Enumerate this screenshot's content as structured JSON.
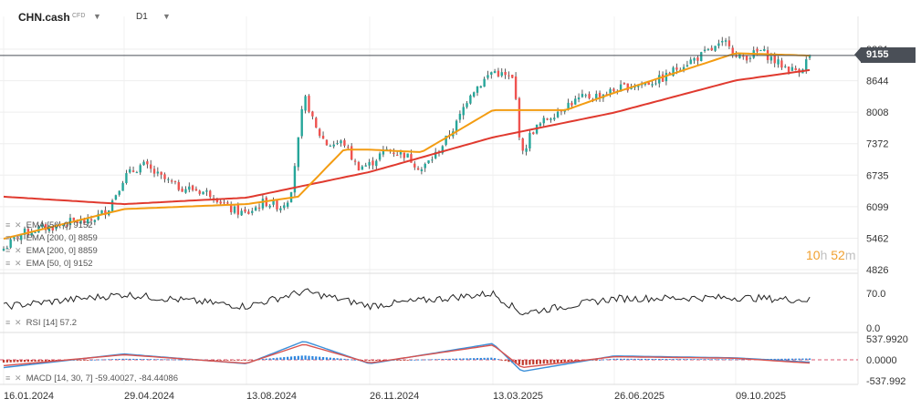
{
  "header": {
    "symbol": "CHN.cash",
    "badge": "CFD",
    "timeframe": "D1"
  },
  "legend": [
    {
      "label": "EMA [50, 0] 9152"
    },
    {
      "label": "EMA [200, 0] 8859"
    },
    {
      "label": "EMA [200, 0] 8859"
    },
    {
      "label": "EMA [50, 0] 9152"
    }
  ],
  "rsi_label": "RSI [14] 57.2",
  "macd_label": "MACD [14, 30, 7] -59.40027, -84.44086",
  "price_tag": "9155",
  "timer": {
    "hours": "10",
    "h": "h",
    "minutes": "52",
    "m": "m"
  },
  "colors": {
    "up": "#26a69a",
    "down": "#ef5350",
    "ema50": "#f39c12",
    "ema200": "#e03a2f",
    "macd": "#3b8fd9",
    "signal": "#d9534f",
    "current_line": "#4a4f57"
  },
  "chart_data": [
    {
      "type": "candlestick",
      "title": "CHN.cash D1",
      "y_ticks": [
        4826,
        5462,
        6099,
        6735,
        7372,
        8008,
        8644,
        9281
      ],
      "y_range": [
        4826,
        9281
      ],
      "current_price": 9155,
      "x_ticks": [
        "16.01.2024",
        "29.04.2024",
        "13.08.2024",
        "26.11.2024",
        "13.03.2025",
        "26.06.2025",
        "09.10.2025"
      ],
      "close_series": [
        [
          "16.01.2024",
          5250
        ],
        [
          "31.01.2024",
          5550
        ],
        [
          "15.02.2024",
          5650
        ],
        [
          "01.03.2024",
          5700
        ],
        [
          "15.03.2024",
          5800
        ],
        [
          "29.03.2024",
          5780
        ],
        [
          "15.04.2024",
          6050
        ],
        [
          "29.04.2024",
          6700
        ],
        [
          "15.05.2024",
          6950
        ],
        [
          "30.05.2024",
          6700
        ],
        [
          "14.06.2024",
          6500
        ],
        [
          "28.06.2024",
          6450
        ],
        [
          "15.07.2024",
          6350
        ],
        [
          "29.07.2024",
          6050
        ],
        [
          "13.08.2024",
          5950
        ],
        [
          "28.08.2024",
          6200
        ],
        [
          "11.09.2024",
          6100
        ],
        [
          "19.09.2024",
          6300
        ],
        [
          "26.09.2024",
          7400
        ],
        [
          "01.10.2024",
          8300
        ],
        [
          "04.10.2024",
          8200
        ],
        [
          "10.10.2024",
          7700
        ],
        [
          "21.10.2024",
          7350
        ],
        [
          "04.11.2024",
          7400
        ],
        [
          "15.11.2024",
          6900
        ],
        [
          "26.11.2024",
          6950
        ],
        [
          "10.12.2024",
          7250
        ],
        [
          "27.12.2024",
          7150
        ],
        [
          "10.01.2025",
          6850
        ],
        [
          "24.01.2025",
          7200
        ],
        [
          "10.02.2025",
          7800
        ],
        [
          "21.02.2025",
          8400
        ],
        [
          "03.03.2025",
          8600
        ],
        [
          "13.03.2025",
          8850
        ],
        [
          "31.03.2025",
          8650
        ],
        [
          "07.04.2025",
          7100
        ],
        [
          "15.04.2025",
          7600
        ],
        [
          "30.04.2025",
          7900
        ],
        [
          "15.05.2025",
          8150
        ],
        [
          "30.05.2025",
          8300
        ],
        [
          "13.06.2025",
          8350
        ],
        [
          "26.06.2025",
          8450
        ],
        [
          "10.07.2025",
          8550
        ],
        [
          "25.07.2025",
          8600
        ],
        [
          "08.08.2025",
          8700
        ],
        [
          "22.08.2025",
          8950
        ],
        [
          "05.09.2025",
          9100
        ],
        [
          "19.09.2025",
          9280
        ],
        [
          "26.09.2025",
          9350
        ],
        [
          "03.10.2025",
          9450
        ],
        [
          "09.10.2025",
          9100
        ],
        [
          "21.10.2025",
          9150
        ],
        [
          "31.10.2025",
          9250
        ],
        [
          "14.11.2025",
          9000
        ],
        [
          "28.11.2025",
          8850
        ],
        [
          "05.12.2025",
          8900
        ],
        [
          "12.12.2025",
          9155
        ]
      ],
      "ema50": [
        [
          "16.01.2024",
          5450
        ],
        [
          "29.04.2024",
          6050
        ],
        [
          "13.08.2024",
          6150
        ],
        [
          "26.09.2024",
          6300
        ],
        [
          "04.11.2024",
          7250
        ],
        [
          "26.11.2024",
          7250
        ],
        [
          "10.01.2025",
          7200
        ],
        [
          "13.03.2025",
          8050
        ],
        [
          "15.05.2025",
          8050
        ],
        [
          "26.06.2025",
          8400
        ],
        [
          "09.10.2025",
          9200
        ],
        [
          "12.12.2025",
          9152
        ]
      ],
      "ema200": [
        [
          "16.01.2024",
          6300
        ],
        [
          "29.04.2024",
          6150
        ],
        [
          "13.08.2024",
          6280
        ],
        [
          "26.11.2024",
          6800
        ],
        [
          "13.03.2025",
          7500
        ],
        [
          "26.06.2025",
          8000
        ],
        [
          "09.10.2025",
          8650
        ],
        [
          "12.12.2025",
          8859
        ]
      ]
    },
    {
      "type": "line",
      "title": "RSI [14]",
      "y_ticks": [
        "70.0",
        "0.0"
      ],
      "y_range": [
        0,
        100
      ],
      "values": [
        [
          "16.01.2024",
          45
        ],
        [
          "29.04.2024",
          68
        ],
        [
          "13.08.2024",
          45
        ],
        [
          "01.10.2024",
          74
        ],
        [
          "26.11.2024",
          46
        ],
        [
          "13.03.2025",
          70
        ],
        [
          "07.04.2025",
          32
        ],
        [
          "26.06.2025",
          60
        ],
        [
          "09.10.2025",
          62
        ],
        [
          "12.12.2025",
          57.2
        ]
      ]
    },
    {
      "type": "bar+line",
      "title": "MACD [14, 30, 7]",
      "y_ticks": [
        "537.9920",
        "0.0000",
        "-537.992"
      ],
      "y_range": [
        -537.992,
        537.992
      ],
      "macd": [
        [
          "16.01.2024",
          -200
        ],
        [
          "29.04.2024",
          150
        ],
        [
          "13.08.2024",
          -100
        ],
        [
          "01.10.2024",
          480
        ],
        [
          "26.11.2024",
          -100
        ],
        [
          "13.03.2025",
          420
        ],
        [
          "07.04.2025",
          -300
        ],
        [
          "26.06.2025",
          100
        ],
        [
          "09.10.2025",
          50
        ],
        [
          "12.12.2025",
          -59.40027
        ]
      ],
      "signal": [
        [
          "16.01.2024",
          -150
        ],
        [
          "29.04.2024",
          130
        ],
        [
          "13.08.2024",
          -90
        ],
        [
          "01.10.2024",
          400
        ],
        [
          "26.11.2024",
          -80
        ],
        [
          "13.03.2025",
          380
        ],
        [
          "07.04.2025",
          -200
        ],
        [
          "26.06.2025",
          80
        ],
        [
          "09.10.2025",
          40
        ],
        [
          "12.12.2025",
          -84.44086
        ]
      ]
    }
  ]
}
